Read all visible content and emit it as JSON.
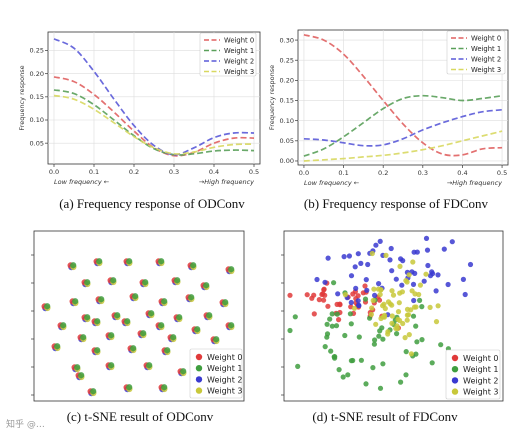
{
  "captions": {
    "a": "(a) Frequency response of ODConv",
    "b": "(b) Frequency response of FDConv",
    "c": "(c) t-SNE result of ODConv",
    "d": "(d) t-SNE result of FDConv"
  },
  "watermark": "知乎 @…",
  "colors": {
    "w0": "#e06060",
    "w1": "#5aa05a",
    "w2": "#5a5ad8",
    "w3": "#d8d860",
    "d0": "#e03a3a",
    "d1": "#3f9e3f",
    "d2": "#3a3ad0",
    "d3": "#c8c83a"
  },
  "chart_data": [
    {
      "id": "a",
      "type": "line",
      "ylabel": "Frequency response",
      "x_note_low": "Low frequency ←",
      "x_note_high": "→High frequency",
      "xlim": [
        -0.015,
        0.515
      ],
      "ylim": [
        0.005,
        0.29
      ],
      "xticks": [
        "0.0",
        "0.1",
        "0.2",
        "0.3",
        "0.4",
        "0.5"
      ],
      "yticks": [
        "0.05",
        "0.10",
        "0.15",
        "0.20",
        "0.25"
      ],
      "legend": [
        "Weight 0",
        "Weight 1",
        "Weight 2",
        "Weight 3"
      ],
      "x": [
        0.0,
        0.05,
        0.1,
        0.15,
        0.2,
        0.25,
        0.3,
        0.35,
        0.4,
        0.45,
        0.5
      ],
      "series": [
        {
          "name": "Weight 0",
          "values": [
            0.193,
            0.183,
            0.155,
            0.117,
            0.076,
            0.04,
            0.023,
            0.03,
            0.05,
            0.061,
            0.061
          ]
        },
        {
          "name": "Weight 1",
          "values": [
            0.165,
            0.157,
            0.133,
            0.1,
            0.066,
            0.038,
            0.025,
            0.027,
            0.033,
            0.035,
            0.034
          ]
        },
        {
          "name": "Weight 2",
          "values": [
            0.275,
            0.255,
            0.205,
            0.145,
            0.088,
            0.045,
            0.025,
            0.04,
            0.062,
            0.072,
            0.072
          ]
        },
        {
          "name": "Weight 3",
          "values": [
            0.153,
            0.145,
            0.123,
            0.094,
            0.064,
            0.04,
            0.027,
            0.031,
            0.041,
            0.047,
            0.048
          ]
        }
      ]
    },
    {
      "id": "b",
      "type": "line",
      "ylabel": "Frequency response",
      "x_note_low": "Low frequency ←",
      "x_note_high": "→High frequency",
      "xlim": [
        -0.015,
        0.515
      ],
      "ylim": [
        -0.01,
        0.325
      ],
      "xticks": [
        "0.0",
        "0.1",
        "0.2",
        "0.3",
        "0.4",
        "0.5"
      ],
      "yticks": [
        "0.00",
        "0.05",
        "0.10",
        "0.15",
        "0.20",
        "0.25",
        "0.30"
      ],
      "legend": [
        "Weight 0",
        "Weight 1",
        "Weight 2",
        "Weight 3"
      ],
      "x": [
        0.0,
        0.05,
        0.1,
        0.15,
        0.2,
        0.25,
        0.3,
        0.35,
        0.4,
        0.45,
        0.5
      ],
      "series": [
        {
          "name": "Weight 0",
          "values": [
            0.313,
            0.3,
            0.265,
            0.21,
            0.15,
            0.092,
            0.045,
            0.017,
            0.015,
            0.03,
            0.033
          ]
        },
        {
          "name": "Weight 1",
          "values": [
            0.012,
            0.03,
            0.06,
            0.095,
            0.13,
            0.155,
            0.162,
            0.157,
            0.15,
            0.155,
            0.162
          ]
        },
        {
          "name": "Weight 2",
          "values": [
            0.055,
            0.052,
            0.045,
            0.038,
            0.04,
            0.055,
            0.077,
            0.095,
            0.11,
            0.122,
            0.127
          ]
        },
        {
          "name": "Weight 3",
          "values": [
            0.0,
            0.003,
            0.006,
            0.01,
            0.014,
            0.02,
            0.028,
            0.038,
            0.05,
            0.062,
            0.074
          ]
        }
      ]
    },
    {
      "id": "c",
      "type": "scatter",
      "legend": [
        "Weight 0",
        "Weight 1",
        "Weight 2",
        "Weight 3"
      ],
      "clusters": [
        [
          72,
          266
        ],
        [
          98,
          262
        ],
        [
          128,
          262
        ],
        [
          160,
          262
        ],
        [
          192,
          266
        ],
        [
          230,
          270
        ],
        [
          86,
          283
        ],
        [
          112,
          281
        ],
        [
          144,
          283
        ],
        [
          176,
          281
        ],
        [
          205,
          286
        ],
        [
          46,
          307
        ],
        [
          74,
          302
        ],
        [
          100,
          300
        ],
        [
          134,
          297
        ],
        [
          163,
          302
        ],
        [
          190,
          298
        ],
        [
          224,
          303
        ],
        [
          86,
          318
        ],
        [
          116,
          316
        ],
        [
          150,
          314
        ],
        [
          178,
          318
        ],
        [
          208,
          316
        ],
        [
          62,
          326
        ],
        [
          96,
          322
        ],
        [
          126,
          322
        ],
        [
          160,
          326
        ],
        [
          196,
          330
        ],
        [
          230,
          326
        ],
        [
          82,
          338
        ],
        [
          110,
          336
        ],
        [
          142,
          334
        ],
        [
          172,
          338
        ],
        [
          215,
          340
        ],
        [
          56,
          347
        ],
        [
          96,
          351
        ],
        [
          132,
          349
        ],
        [
          166,
          351
        ],
        [
          196,
          356
        ],
        [
          76,
          368
        ],
        [
          110,
          366
        ],
        [
          148,
          366
        ],
        [
          182,
          372
        ],
        [
          92,
          392
        ],
        [
          128,
          388
        ],
        [
          163,
          388
        ],
        [
          198,
          393
        ],
        [
          235,
          392
        ],
        [
          80,
          376
        ]
      ]
    },
    {
      "id": "d",
      "type": "scatter",
      "legend": [
        "Weight 0",
        "Weight 1",
        "Weight 2",
        "Weight 3"
      ],
      "groups": [
        {
          "name": "Weight 0",
          "center": [
            345,
            304
          ],
          "spread": [
            42,
            22
          ],
          "count": 42,
          "seed": 11
        },
        {
          "name": "Weight 1",
          "center": [
            370,
            336
          ],
          "spread": [
            62,
            38
          ],
          "count": 60,
          "seed": 23
        },
        {
          "name": "Weight 2",
          "center": [
            395,
            272
          ],
          "spread": [
            60,
            32
          ],
          "count": 58,
          "seed": 37
        },
        {
          "name": "Weight 3",
          "center": [
            398,
            306
          ],
          "spread": [
            36,
            40
          ],
          "count": 62,
          "seed": 53
        }
      ]
    }
  ]
}
